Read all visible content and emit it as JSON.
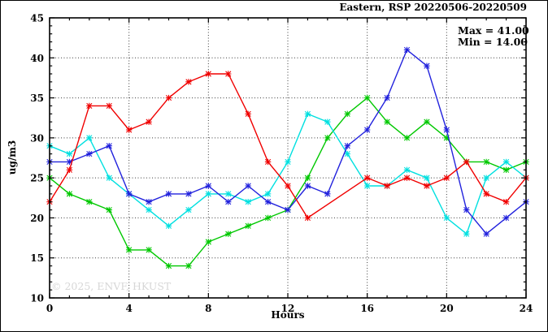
{
  "figure": {
    "title": "Eastern, RSP 20220506-20220509",
    "max_label": "Max = 41.00",
    "min_label": "Min = 14.00",
    "watermark": "© 2025, ENVF, HKUST",
    "xlabel": "Hours",
    "ylabel": "ug/m3"
  },
  "chart_data": {
    "type": "line",
    "title": "Eastern, RSP 20220506-20220509",
    "xlabel": "Hours",
    "ylabel": "ug/m3",
    "xlim": [
      0,
      24
    ],
    "ylim": [
      10,
      45
    ],
    "xticks": [
      0,
      4,
      8,
      12,
      16,
      20,
      24
    ],
    "yticks": [
      10,
      15,
      20,
      25,
      30,
      35,
      40,
      45
    ],
    "x_minor_step": 1,
    "y_minor_step": 1,
    "grid": true,
    "legend_position": "none",
    "annotations": {
      "max": 41.0,
      "min": 14.0
    },
    "x": [
      0,
      1,
      2,
      3,
      4,
      5,
      6,
      7,
      8,
      9,
      10,
      11,
      12,
      13,
      14,
      15,
      16,
      17,
      18,
      19,
      20,
      21,
      22,
      23,
      24
    ],
    "series": [
      {
        "name": "green-line",
        "color": "#00c800",
        "values": [
          25,
          23,
          22,
          21,
          16,
          16,
          14,
          14,
          17,
          18,
          19,
          20,
          21,
          25,
          30,
          33,
          35,
          32,
          30,
          32,
          30,
          27,
          27,
          26,
          27
        ]
      },
      {
        "name": "cyan-line",
        "color": "#00e0e0",
        "values": [
          29,
          28,
          30,
          25,
          23,
          21,
          19,
          21,
          23,
          23,
          22,
          23,
          27,
          33,
          32,
          28,
          24,
          24,
          26,
          25,
          20,
          18,
          25,
          27,
          25
        ]
      },
      {
        "name": "blue-line",
        "color": "#2222dd",
        "values": [
          27,
          27,
          28,
          29,
          23,
          22,
          23,
          23,
          24,
          22,
          24,
          22,
          21,
          24,
          23,
          29,
          31,
          35,
          41,
          39,
          31,
          21,
          18,
          20,
          22
        ]
      },
      {
        "name": "red-line",
        "color": "#f00000",
        "values": [
          22,
          26,
          34,
          34,
          31,
          32,
          35,
          37,
          38,
          38,
          33,
          27,
          24,
          20,
          null,
          null,
          25,
          24,
          25,
          24,
          25,
          27,
          23,
          22,
          25
        ]
      }
    ]
  },
  "colors": {
    "frame": "#000000",
    "grid": "#3c3c3c",
    "watermark": "#d7d7d7"
  }
}
